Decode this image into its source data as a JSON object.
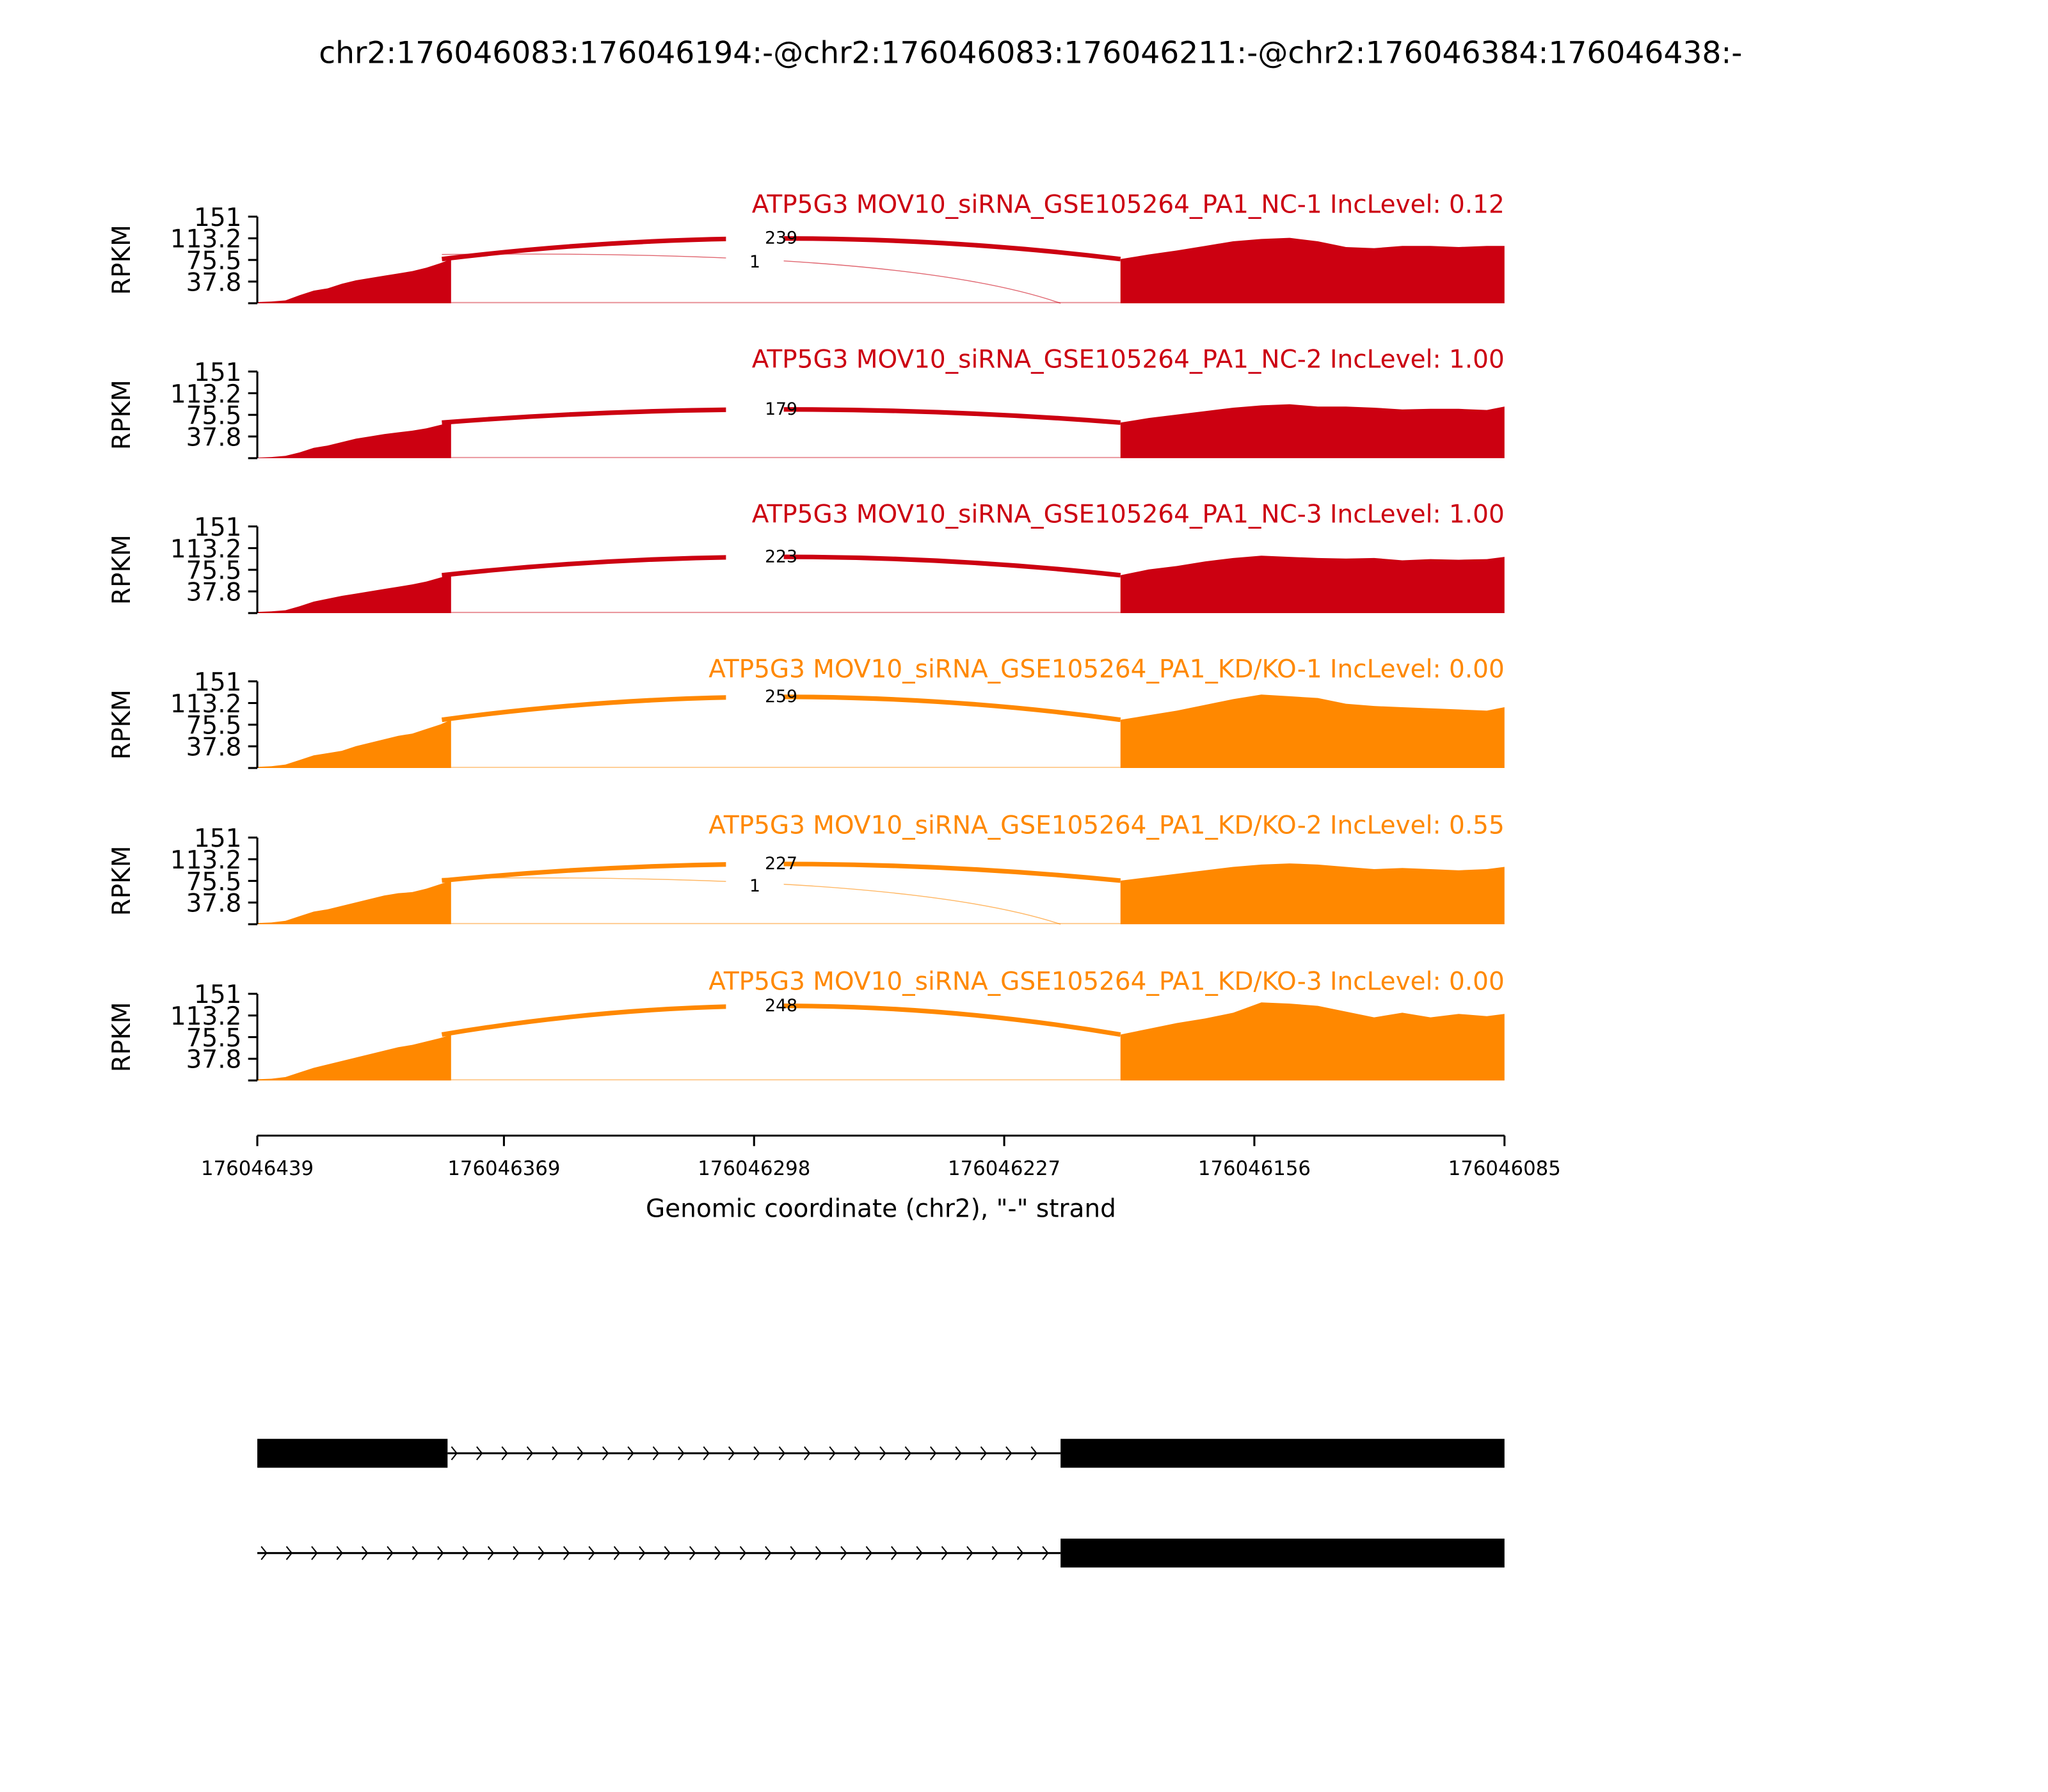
{
  "chart_data": {
    "type": "area",
    "title": "chr2:176046083:176046194:-@chr2:176046083:176046211:-@chr2:176046384:176046438:-",
    "xlabel": "Genomic coordinate (chr2), \"-\" strand",
    "ylabel": "RPKM",
    "xlim": [
      176046439,
      176046085
    ],
    "x_ticks": [
      "176046439",
      "176046369",
      "176046298",
      "176046227",
      "176046156",
      "176046085"
    ],
    "x_tick_values": [
      176046439,
      176046369,
      176046298,
      176046227,
      176046156,
      176046085
    ],
    "ylim": [
      0,
      151
    ],
    "y_ticks": [
      "151",
      "113.2",
      "75.5",
      "37.8"
    ],
    "y_tick_values": [
      151,
      113.2,
      75.5,
      37.8
    ],
    "coverage_x_exon1": [
      176046439,
      176046435,
      176046431,
      176046427,
      176046423,
      176046419,
      176046415,
      176046411,
      176046407,
      176046403,
      176046399,
      176046395,
      176046391,
      176046387,
      176046384
    ],
    "coverage_x_exon2": [
      176046194,
      176046186,
      176046178,
      176046170,
      176046162,
      176046154,
      176046146,
      176046138,
      176046130,
      176046122,
      176046114,
      176046106,
      176046098,
      176046090,
      176046085
    ],
    "series": [
      {
        "name": "ATP5G3 MOV10_siRNA_GSE105264_PA1_NC-1 IncLevel: 0.12",
        "color": "#cc0011",
        "exon1": [
          2,
          3,
          5,
          14,
          22,
          26,
          34,
          40,
          44,
          48,
          52,
          56,
          62,
          70,
          77
        ],
        "exon2": [
          77,
          85,
          92,
          100,
          108,
          112,
          114,
          108,
          98,
          96,
          100,
          100,
          98,
          100,
          100
        ],
        "junctions": [
          {
            "from": 176046384,
            "to": 176046194,
            "count": "239",
            "peak": 113,
            "main": true
          },
          {
            "from": 176046384,
            "to": 176046211,
            "count": "1",
            "peak": 85,
            "main": false
          }
        ]
      },
      {
        "name": "ATP5G3 MOV10_siRNA_GSE105264_PA1_NC-2 IncLevel: 1.00",
        "color": "#cc0011",
        "exon1": [
          1,
          2,
          4,
          10,
          18,
          22,
          28,
          34,
          38,
          42,
          45,
          48,
          52,
          58,
          62
        ],
        "exon2": [
          62,
          70,
          76,
          82,
          88,
          92,
          94,
          90,
          90,
          88,
          85,
          86,
          86,
          84,
          90
        ],
        "junctions": [
          {
            "from": 176046384,
            "to": 176046194,
            "count": "179",
            "peak": 85,
            "main": true
          }
        ]
      },
      {
        "name": "ATP5G3 MOV10_siRNA_GSE105264_PA1_NC-3 IncLevel: 1.00",
        "color": "#cc0011",
        "exon1": [
          2,
          3,
          5,
          12,
          20,
          25,
          30,
          34,
          38,
          42,
          46,
          50,
          55,
          62,
          66
        ],
        "exon2": [
          66,
          76,
          82,
          90,
          96,
          100,
          98,
          96,
          95,
          96,
          92,
          94,
          93,
          94,
          98
        ],
        "junctions": [
          {
            "from": 176046384,
            "to": 176046194,
            "count": "223",
            "peak": 98,
            "main": true
          }
        ]
      },
      {
        "name": "ATP5G3 MOV10_siRNA_GSE105264_PA1_KD/KO-1 IncLevel: 0.00",
        "color": "#ff8800",
        "exon1": [
          2,
          3,
          6,
          14,
          22,
          26,
          30,
          38,
          44,
          50,
          56,
          60,
          68,
          76,
          84
        ],
        "exon2": [
          84,
          92,
          100,
          110,
          120,
          128,
          125,
          122,
          112,
          108,
          106,
          104,
          102,
          100,
          106
        ],
        "junctions": [
          {
            "from": 176046384,
            "to": 176046194,
            "count": "259",
            "peak": 124,
            "main": true
          }
        ]
      },
      {
        "name": "ATP5G3 MOV10_siRNA_GSE105264_PA1_KD/KO-2 IncLevel: 0.55",
        "color": "#ff8800",
        "exon1": [
          2,
          3,
          6,
          14,
          22,
          26,
          32,
          38,
          44,
          50,
          54,
          56,
          62,
          70,
          76
        ],
        "exon2": [
          76,
          82,
          88,
          94,
          100,
          104,
          106,
          104,
          100,
          96,
          98,
          96,
          94,
          96,
          100
        ],
        "junctions": [
          {
            "from": 176046384,
            "to": 176046194,
            "count": "227",
            "peak": 105,
            "main": true
          },
          {
            "from": 176046384,
            "to": 176046211,
            "count": "1",
            "peak": 80,
            "main": false
          }
        ]
      },
      {
        "name": "ATP5G3 MOV10_siRNA_GSE105264_PA1_KD/KO-3 IncLevel: 0.00",
        "color": "#ff8800",
        "exon1": [
          2,
          3,
          6,
          14,
          22,
          28,
          34,
          40,
          46,
          52,
          58,
          62,
          68,
          74,
          80
        ],
        "exon2": [
          80,
          90,
          100,
          108,
          118,
          136,
          134,
          130,
          120,
          110,
          118,
          110,
          116,
          112,
          116
        ],
        "junctions": [
          {
            "from": 176046384,
            "to": 176046194,
            "count": "248",
            "peak": 130,
            "main": true
          }
        ]
      }
    ],
    "transcripts": [
      {
        "exons": [
          [
            176046439,
            176046385
          ],
          [
            176046211,
            176046085
          ]
        ],
        "intron": [
          176046385,
          176046211
        ]
      },
      {
        "exons": [
          [
            176046211,
            176046085
          ]
        ],
        "intron": [
          176046439,
          176046211
        ]
      }
    ]
  }
}
